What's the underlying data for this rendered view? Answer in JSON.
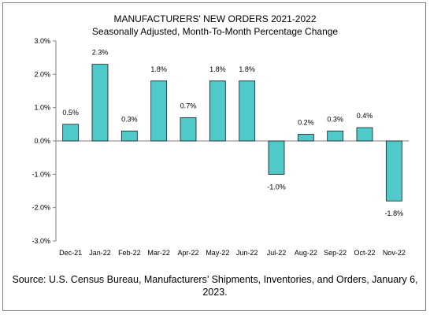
{
  "chart_data": {
    "type": "bar",
    "title": "MANUFACTURERS' NEW ORDERS 2021-2022",
    "subtitle": "Seasonally Adjusted,  Month-To-Month Percentage Change",
    "categories": [
      "Dec-21",
      "Jan-22",
      "Feb-22",
      "Mar-22",
      "Apr-22",
      "May-22",
      "Jun-22",
      "Jul-22",
      "Aug-22",
      "Sep-22",
      "Oct-22",
      "Nov-22"
    ],
    "values": [
      0.5,
      2.3,
      0.3,
      1.8,
      0.7,
      1.8,
      1.8,
      -1.0,
      0.2,
      0.3,
      0.4,
      -1.8
    ],
    "data_labels": [
      "0.5%",
      "2.3%",
      "0.3%",
      "1.8%",
      "0.7%",
      "1.8%",
      "1.8%",
      "-1.0%",
      "0.2%",
      "0.3%",
      "0.4%",
      "-1.8%"
    ],
    "ylim": [
      -3.0,
      3.0
    ],
    "yticks": [
      3.0,
      2.0,
      1.0,
      0.0,
      -1.0,
      -2.0,
      -3.0
    ],
    "ytick_labels": [
      "3.0%",
      "2.0%",
      "1.0%",
      "0.0%",
      "-1.0%",
      "-2.0%",
      "-3.0%"
    ],
    "xlabel": "",
    "ylabel": "",
    "grid": false,
    "bar_color": "#4fc9c9",
    "source": "Source: U.S. Census Bureau, Manufacturers’ Shipments, Inventories, and Orders, January 6, 2023."
  }
}
